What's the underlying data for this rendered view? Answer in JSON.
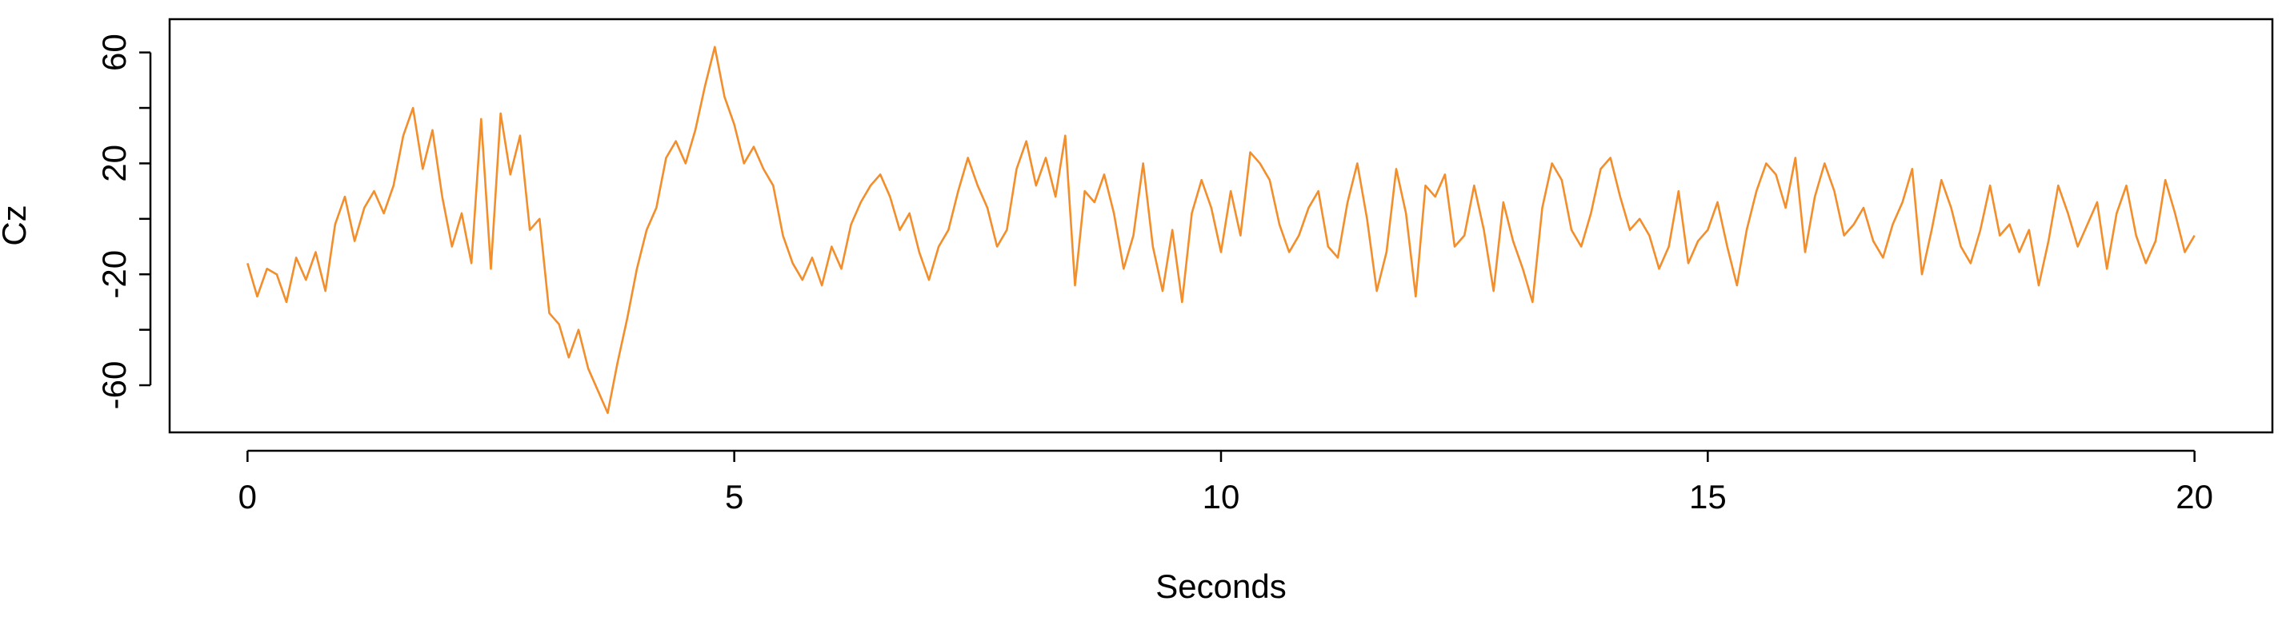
{
  "chart_data": {
    "type": "line",
    "title": "",
    "xlabel": "Seconds",
    "ylabel": "Cz",
    "xlim": [
      -0.8,
      20.8
    ],
    "ylim": [
      -77,
      72
    ],
    "xticks": [
      0,
      5,
      10,
      15,
      20
    ],
    "xtick_labels": [
      "0",
      "5",
      "10",
      "15",
      "20"
    ],
    "yticks": [
      -60,
      -40,
      -20,
      0,
      20,
      40,
      60
    ],
    "ytick_labels": [
      "-60",
      "",
      "-20",
      "",
      "20",
      "",
      "60"
    ],
    "grid": false,
    "line_color": "#F28E2B",
    "series": [
      {
        "x": [
          0.0,
          0.1,
          0.2,
          0.3,
          0.4,
          0.5,
          0.6,
          0.7,
          0.8,
          0.9,
          1.0,
          1.1,
          1.2,
          1.3,
          1.4,
          1.5,
          1.6,
          1.7,
          1.8,
          1.9,
          2.0,
          2.1,
          2.2,
          2.3,
          2.4,
          2.5,
          2.6,
          2.7,
          2.8,
          2.9,
          3.0,
          3.1,
          3.2,
          3.3,
          3.4,
          3.5,
          3.6,
          3.7,
          3.8,
          3.9,
          4.0,
          4.1,
          4.2,
          4.3,
          4.4,
          4.5,
          4.6,
          4.7,
          4.8,
          4.9,
          5.0,
          5.1,
          5.2,
          5.3,
          5.4,
          5.5,
          5.6,
          5.7,
          5.8,
          5.9,
          6.0,
          6.1,
          6.2,
          6.3,
          6.4,
          6.5,
          6.6,
          6.7,
          6.8,
          6.9,
          7.0,
          7.1,
          7.2,
          7.3,
          7.4,
          7.5,
          7.6,
          7.7,
          7.8,
          7.9,
          8.0,
          8.1,
          8.2,
          8.3,
          8.4,
          8.5,
          8.6,
          8.7,
          8.8,
          8.9,
          9.0,
          9.1,
          9.2,
          9.3,
          9.4,
          9.5,
          9.6,
          9.7,
          9.8,
          9.9,
          10.0,
          10.1,
          10.2,
          10.3,
          10.4,
          10.5,
          10.6,
          10.7,
          10.8,
          10.9,
          11.0,
          11.1,
          11.2,
          11.3,
          11.4,
          11.5,
          11.6,
          11.7,
          11.8,
          11.9,
          12.0,
          12.1,
          12.2,
          12.3,
          12.4,
          12.5,
          12.6,
          12.7,
          12.8,
          12.9,
          13.0,
          13.1,
          13.2,
          13.3,
          13.4,
          13.5,
          13.6,
          13.7,
          13.8,
          13.9,
          14.0,
          14.1,
          14.2,
          14.3,
          14.4,
          14.5,
          14.6,
          14.7,
          14.8,
          14.9,
          15.0,
          15.1,
          15.2,
          15.3,
          15.4,
          15.5,
          15.6,
          15.7,
          15.8,
          15.9,
          16.0,
          16.1,
          16.2,
          16.3,
          16.4,
          16.5,
          16.6,
          16.7,
          16.8,
          16.9,
          17.0,
          17.1,
          17.2,
          17.3,
          17.4,
          17.5,
          17.6,
          17.7,
          17.8,
          17.9,
          18.0,
          18.1,
          18.2,
          18.3,
          18.4,
          18.5,
          18.6,
          18.7,
          18.8,
          18.9,
          19.0,
          19.1,
          19.2,
          19.3,
          19.4,
          19.5,
          19.6,
          19.7,
          19.8,
          19.9,
          20.0
        ],
        "y": [
          -16,
          -28,
          -18,
          -20,
          -30,
          -14,
          -22,
          -12,
          -26,
          -2,
          8,
          -8,
          4,
          10,
          2,
          12,
          30,
          40,
          18,
          32,
          8,
          -10,
          2,
          -16,
          36,
          -18,
          38,
          16,
          30,
          -4,
          0,
          -34,
          -38,
          -50,
          -40,
          -54,
          -62,
          -70,
          -52,
          -36,
          -18,
          -4,
          4,
          22,
          28,
          20,
          32,
          48,
          62,
          44,
          34,
          20,
          26,
          18,
          12,
          -6,
          -16,
          -22,
          -14,
          -24,
          -10,
          -18,
          -2,
          6,
          12,
          16,
          8,
          -4,
          2,
          -12,
          -22,
          -10,
          -4,
          10,
          22,
          12,
          4,
          -10,
          -4,
          18,
          28,
          12,
          22,
          8,
          30,
          -24,
          10,
          6,
          16,
          2,
          -18,
          -6,
          20,
          -10,
          -26,
          -4,
          -30,
          2,
          14,
          4,
          -12,
          10,
          -6,
          24,
          20,
          14,
          -2,
          -12,
          -6,
          4,
          10,
          -10,
          -14,
          6,
          20,
          0,
          -26,
          -12,
          18,
          2,
          -28,
          12,
          8,
          16,
          -10,
          -6,
          12,
          -4,
          -26,
          6,
          -8,
          -18,
          -30,
          4,
          20,
          14,
          -4,
          -10,
          2,
          18,
          22,
          8,
          -4,
          0,
          -6,
          -18,
          -10,
          10,
          -16,
          -8,
          -4,
          6,
          -10,
          -24,
          -4,
          10,
          20,
          16,
          4,
          22,
          -12,
          8,
          20,
          10,
          -6,
          -2,
          4,
          -8,
          -14,
          -2,
          6,
          18,
          -20,
          -4,
          14,
          4,
          -10,
          -16,
          -4,
          12,
          -6,
          -2,
          -12,
          -4,
          -24,
          -8,
          12,
          2,
          -10,
          -2,
          6,
          -18,
          2,
          12,
          -6,
          -16,
          -8,
          14,
          2,
          -12,
          -6
        ],
        "note": ""
      }
    ]
  }
}
